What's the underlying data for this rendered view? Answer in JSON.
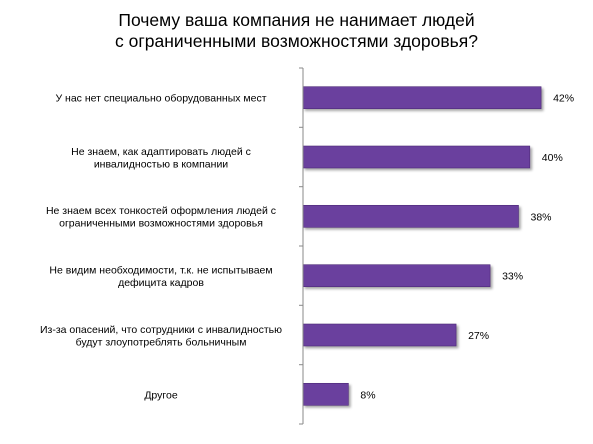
{
  "chart_data": {
    "type": "bar",
    "orientation": "horizontal",
    "title": [
      "Почему ваша компания не нанимает людей",
      "с ограниченными возможностями здоровья?"
    ],
    "categories": [
      [
        "У нас нет специально оборудованных мест"
      ],
      [
        "Не знаем, как адаптировать людей с",
        "инвалидностью в компании"
      ],
      [
        "Не знаем всех тонкостей оформления людей с",
        "ограниченными возможностями здоровья"
      ],
      [
        "Не видим необходимости, т.к. не испытываем",
        "дефицита кадров"
      ],
      [
        "Из-за опасений, что сотрудники с инвалидностью",
        "будут  злоупотреблять больничным"
      ],
      [
        "Другое"
      ]
    ],
    "values": [
      42,
      40,
      38,
      33,
      27,
      8
    ],
    "value_labels": [
      "42%",
      "40%",
      "38%",
      "33%",
      "27%",
      "8%"
    ],
    "unit": "%",
    "xlim": [
      0,
      45
    ],
    "grid": false,
    "legend": "none",
    "colors": {
      "bar": "#6b3f9e",
      "bar_edge": "#4e2c78",
      "axis": "#888888"
    }
  }
}
